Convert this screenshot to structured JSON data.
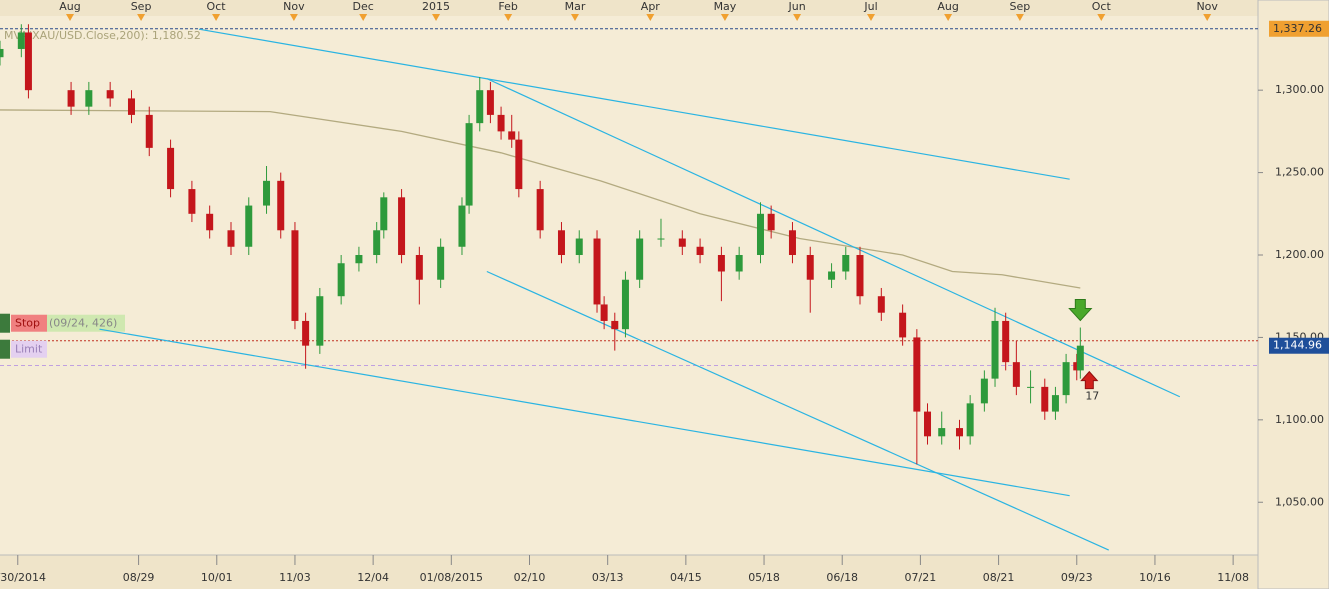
{
  "chart_data": {
    "type": "candlestick",
    "indicator_label": "MVA(XAU/USD.Close,200): 1,180.52",
    "xlim": [
      0,
      354
    ],
    "ylim": [
      1018,
      1345
    ],
    "yticks": [
      {
        "value": 1050,
        "label": "1,050.00"
      },
      {
        "value": 1100,
        "label": "1,100.00"
      },
      {
        "value": 1150,
        "label": "1,150.00"
      },
      {
        "value": 1200,
        "label": "1,200.00"
      },
      {
        "value": 1250,
        "label": "1,250.00"
      },
      {
        "value": 1300,
        "label": "1,300.00"
      }
    ],
    "xticks": [
      {
        "value": 5,
        "label": "6/30/2014"
      },
      {
        "value": 39,
        "label": "08/29"
      },
      {
        "value": 61,
        "label": "10/01"
      },
      {
        "value": 83,
        "label": "11/03"
      },
      {
        "value": 105,
        "label": "12/04"
      },
      {
        "value": 127,
        "label": "01/08/2015"
      },
      {
        "value": 149,
        "label": "02/10"
      },
      {
        "value": 171,
        "label": "03/13"
      },
      {
        "value": 193,
        "label": "04/15"
      },
      {
        "value": 215,
        "label": "05/18"
      },
      {
        "value": 237,
        "label": "06/18"
      },
      {
        "value": 259,
        "label": "07/21"
      },
      {
        "value": 281,
        "label": "08/21"
      },
      {
        "value": 303,
        "label": "09/23"
      },
      {
        "value": 325,
        "label": "10/16"
      },
      {
        "value": 347,
        "label": "11/08"
      }
    ],
    "top_ticks": [
      {
        "value": 19.7,
        "label": "Aug"
      },
      {
        "value": 39.7,
        "label": "Sep"
      },
      {
        "value": 60.8,
        "label": "Oct"
      },
      {
        "value": 82.7,
        "label": "Nov"
      },
      {
        "value": 102.2,
        "label": "Dec"
      },
      {
        "value": 122.7,
        "label": "2015"
      },
      {
        "value": 143,
        "label": "Feb"
      },
      {
        "value": 161.8,
        "label": "Mar"
      },
      {
        "value": 183,
        "label": "Apr"
      },
      {
        "value": 204,
        "label": "May"
      },
      {
        "value": 224.3,
        "label": "Jun"
      },
      {
        "value": 245.1,
        "label": "Jul"
      },
      {
        "value": 266.8,
        "label": "Aug"
      },
      {
        "value": 287,
        "label": "Sep"
      },
      {
        "value": 309.9,
        "label": "Oct"
      },
      {
        "value": 339.7,
        "label": "Nov"
      }
    ],
    "x": [
      0,
      6,
      8,
      20,
      25,
      31,
      37,
      42,
      48,
      54,
      59,
      65,
      70,
      75,
      79,
      83,
      86,
      90,
      96,
      101,
      106,
      108,
      113,
      118,
      124,
      130,
      132,
      135,
      138,
      141,
      144,
      146,
      152,
      158,
      163,
      168,
      170,
      173,
      176,
      180,
      186,
      192,
      197,
      203,
      208,
      214,
      217,
      223,
      228,
      234,
      238,
      242,
      248,
      254,
      258,
      261,
      265,
      270,
      273,
      277,
      280,
      283,
      286,
      290,
      294,
      297,
      300,
      303,
      304
    ],
    "open": [
      1320,
      1325,
      1335,
      1300,
      1290,
      1300,
      1295,
      1285,
      1265,
      1240,
      1225,
      1215,
      1205,
      1230,
      1245,
      1215,
      1160,
      1145,
      1175,
      1195,
      1200,
      1215,
      1235,
      1200,
      1185,
      1205,
      1230,
      1280,
      1300,
      1285,
      1275,
      1270,
      1240,
      1215,
      1200,
      1210,
      1170,
      1160,
      1155,
      1185,
      1210,
      1210,
      1205,
      1200,
      1190,
      1200,
      1225,
      1215,
      1200,
      1185,
      1190,
      1200,
      1175,
      1165,
      1150,
      1105,
      1090,
      1095,
      1090,
      1110,
      1125,
      1160,
      1135,
      1120,
      1120,
      1105,
      1115,
      1135,
      1130
    ],
    "high": [
      1330,
      1340,
      1340,
      1305,
      1305,
      1305,
      1300,
      1290,
      1270,
      1245,
      1230,
      1220,
      1235,
      1254,
      1250,
      1220,
      1165,
      1180,
      1200,
      1205,
      1220,
      1238,
      1240,
      1205,
      1210,
      1235,
      1285,
      1308,
      1305,
      1290,
      1285,
      1275,
      1245,
      1220,
      1215,
      1215,
      1175,
      1165,
      1190,
      1215,
      1222,
      1215,
      1210,
      1205,
      1205,
      1232,
      1230,
      1220,
      1205,
      1195,
      1205,
      1205,
      1180,
      1170,
      1155,
      1110,
      1105,
      1100,
      1115,
      1130,
      1168,
      1165,
      1148,
      1130,
      1125,
      1120,
      1140,
      1140,
      1156
    ],
    "low": [
      1315,
      1320,
      1295,
      1285,
      1285,
      1290,
      1280,
      1260,
      1235,
      1220,
      1210,
      1200,
      1200,
      1225,
      1210,
      1155,
      1131,
      1140,
      1170,
      1190,
      1195,
      1210,
      1195,
      1170,
      1180,
      1200,
      1225,
      1275,
      1280,
      1270,
      1265,
      1235,
      1210,
      1195,
      1195,
      1165,
      1155,
      1142,
      1150,
      1180,
      1205,
      1200,
      1195,
      1172,
      1185,
      1195,
      1210,
      1195,
      1165,
      1180,
      1185,
      1170,
      1160,
      1145,
      1073,
      1085,
      1085,
      1082,
      1085,
      1105,
      1120,
      1130,
      1115,
      1110,
      1100,
      1100,
      1110,
      1124,
      1125
    ],
    "close": [
      1325,
      1335,
      1300,
      1290,
      1300,
      1295,
      1285,
      1265,
      1240,
      1225,
      1215,
      1205,
      1230,
      1245,
      1215,
      1160,
      1145,
      1175,
      1195,
      1200,
      1215,
      1235,
      1200,
      1185,
      1205,
      1230,
      1280,
      1300,
      1285,
      1275,
      1270,
      1240,
      1215,
      1200,
      1210,
      1170,
      1160,
      1155,
      1185,
      1210,
      1210,
      1205,
      1200,
      1190,
      1200,
      1225,
      1215,
      1200,
      1185,
      1190,
      1200,
      1175,
      1165,
      1150,
      1105,
      1090,
      1095,
      1090,
      1110,
      1125,
      1160,
      1135,
      1120,
      1120,
      1105,
      1115,
      1135,
      1130,
      1145
    ],
    "up_color": "#2e9a3c",
    "down_color": "#c4161c",
    "moving_average": {
      "color": "#b3aa80",
      "x": [
        0,
        76,
        113,
        141,
        169,
        197,
        225,
        254,
        268,
        282,
        304
      ],
      "values": [
        1288,
        1287,
        1275,
        1262,
        1245,
        1225,
        1210,
        1200,
        1190,
        1188,
        1180
      ]
    },
    "trendlines": {
      "color": "#2ab4e2",
      "lines": [
        {
          "x": [
            56,
            301
          ],
          "values": [
            1337,
            1246
          ]
        },
        {
          "x": [
            28,
            301
          ],
          "values": [
            1155,
            1054
          ]
        },
        {
          "x": [
            137,
            332
          ],
          "values": [
            1307,
            1114
          ]
        },
        {
          "x": [
            137,
            312
          ],
          "values": [
            1190,
            1021
          ]
        }
      ]
    },
    "high_level": {
      "value": 1337.26,
      "label": "1,337.26"
    },
    "last_level": {
      "value": 1144.96,
      "label": "1,144.96"
    },
    "stop_level": 1148,
    "limit_level": 1133,
    "stop_label": "Stop",
    "stop_detail": "(09/24, 426)",
    "limit_label": "Limit",
    "signal_label": "17"
  }
}
